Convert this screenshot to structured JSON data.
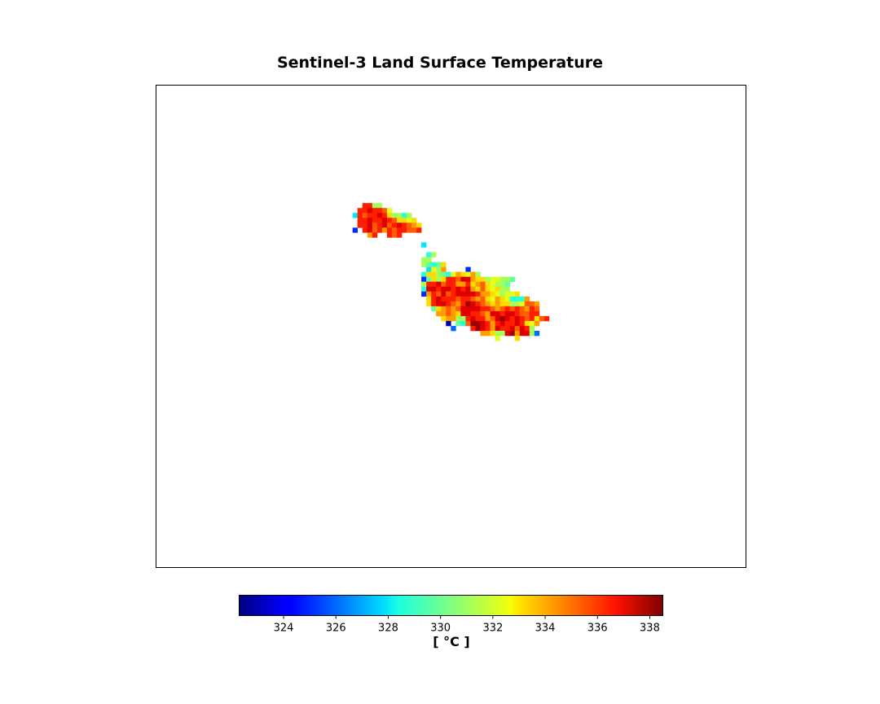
{
  "chart_data": {
    "type": "heatmap",
    "title": "Sentinel-3 Land Surface Temperature",
    "colormap": "jet",
    "colorbar": {
      "label": "[ °C ]",
      "vmin": 322.3,
      "vmax": 338.5,
      "ticks": [
        324,
        326,
        328,
        330,
        332,
        334,
        336,
        338
      ],
      "tick_labels": [
        "324",
        "326",
        "328",
        "330",
        "332",
        "334",
        "336",
        "338"
      ]
    },
    "grid_on": false,
    "axis_ticks_visible": false,
    "grid": {
      "origin_cell": [
        40,
        24
      ],
      "cell_count": [
        120,
        98
      ],
      "rows": [
        {
          "y": 24,
          "x0": 42,
          "v": "336 336 331 331"
        },
        {
          "y": 25,
          "x0": 41,
          "v": "336 336 337 336 336 335 332"
        },
        {
          "y": 26,
          "x0": 40,
          "v": "328 336 335 336 336 337 336 333 331 331 329 331"
        },
        {
          "y": 27,
          "x0": 40,
          "v": "_ 336 336 337 336 336 337 336 335 333 333 332 333"
        },
        {
          "y": 28,
          "x0": 41,
          "v": "336 336 337 335 336 337 335 336 337 336 335 334 333"
        },
        {
          "y": 29,
          "x0": 40,
          "v": "325 _ 336 337 335 336 334 336 335 336 336 335 335 336"
        },
        {
          "y": 30,
          "x0": 43,
          "v": "334 336 _ _ 336 335 336"
        },
        {
          "y": 32,
          "x0": 54,
          "v": "328"
        },
        {
          "y": 34,
          "x0": 55,
          "v": "329 331"
        },
        {
          "y": 35,
          "x0": 54,
          "v": "331 331 _ _"
        },
        {
          "y": 36,
          "x0": 54,
          "v": "331 330 329 330 333"
        },
        {
          "y": 37,
          "x0": 55,
          "v": "328 332 331 334 _ _ _ _ 325"
        },
        {
          "y": 38,
          "x0": 54,
          "v": "329 333 333 331 330 329 332 334 333 332 334 331"
        },
        {
          "y": 39,
          "x0": 54,
          "v": "325 330 333 331 333 336 336 335 337 337 334 333 333 331 332 332 331 331 330"
        },
        {
          "y": 40,
          "x0": 54,
          "v": "331 336 336 337 335 336 336 334 334 336 333 334 335 333 332 331 331 330"
        },
        {
          "y": 41,
          "x0": 54,
          "v": "329 337 337 336 337 337 336 337 336 337 334 333 335 333 332 333 331 331"
        },
        {
          "y": 42,
          "x0": 54,
          "v": "325 334 336 335 337 335 336 337 337 337 337 336 334 334 333 332 331 332 332 333"
        },
        {
          "y": 43,
          "x0": 55,
          "v": "333 336 337 336 336 336 335 336 336 335 334 335 333 332 334 333 332 329 329 329 334"
        },
        {
          "y": 44,
          "x0": 55,
          "v": "333 336 337 337 336 335 334 336 338 337 336 335 334 333 334 333 333 331 331 332 335 335 334"
        },
        {
          "y": 45,
          "x0": 56,
          "v": "330 333 334 335 334 335 337 337 337 337 336 336 335 334 335 336 335 336 335 334 336 335"
        },
        {
          "y": 46,
          "x0": 57,
          "v": "334 334 335 334 333 337 337 336 336 335 334 337 337 336 337 337 336 335 335 336 336"
        },
        {
          "y": 47,
          "x0": 58,
          "v": "333 334 334 331 331 336 337 336 336 334 335 337 338 337 336 337 336 335 336 333 335 336"
        },
        {
          "y": 48,
          "x0": 59,
          "v": "323 _ 330 329 335 338 338 337 336 334 336 337 336 336 337 336 333 332 334"
        },
        {
          "y": 49,
          "x0": 60,
          "v": "326 _ _ _ 336 338 337 336 334 337 336 336 337 335 337 336 331"
        },
        {
          "y": 50,
          "x0": 66,
          "v": "334 334 333 331 331 337 338 334 337 337 331 326"
        },
        {
          "y": 51,
          "x0": 69,
          "v": "332 _ _ _ 333"
        }
      ]
    }
  }
}
